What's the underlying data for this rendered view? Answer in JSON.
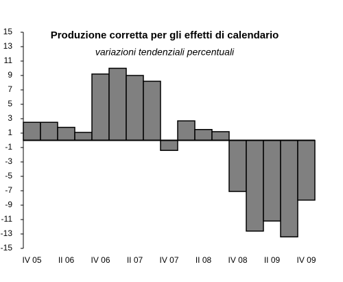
{
  "chart_data": {
    "type": "bar",
    "title": "Produzione corretta per gli effetti di calendario",
    "subtitle": "variazioni tendenziali percentuali",
    "categories": [
      "IV 05",
      null,
      "II 06",
      null,
      "IV 06",
      null,
      "II 07",
      null,
      "IV 07",
      null,
      "II 08",
      null,
      "IV 08",
      null,
      "II 09",
      null,
      "IV 09"
    ],
    "values": [
      2.5,
      2.5,
      1.8,
      1.1,
      9.2,
      10.0,
      9.0,
      8.2,
      -1.4,
      2.7,
      1.5,
      1.2,
      -7.1,
      -12.6,
      -11.2,
      -13.4,
      -8.3
    ],
    "color": "#808080",
    "ylim": [
      -15,
      15
    ],
    "yticks": [
      -15,
      -13,
      -11,
      -9,
      -7,
      -5,
      -3,
      -1,
      1,
      3,
      5,
      7,
      9,
      11,
      13,
      15
    ],
    "grid": false
  }
}
